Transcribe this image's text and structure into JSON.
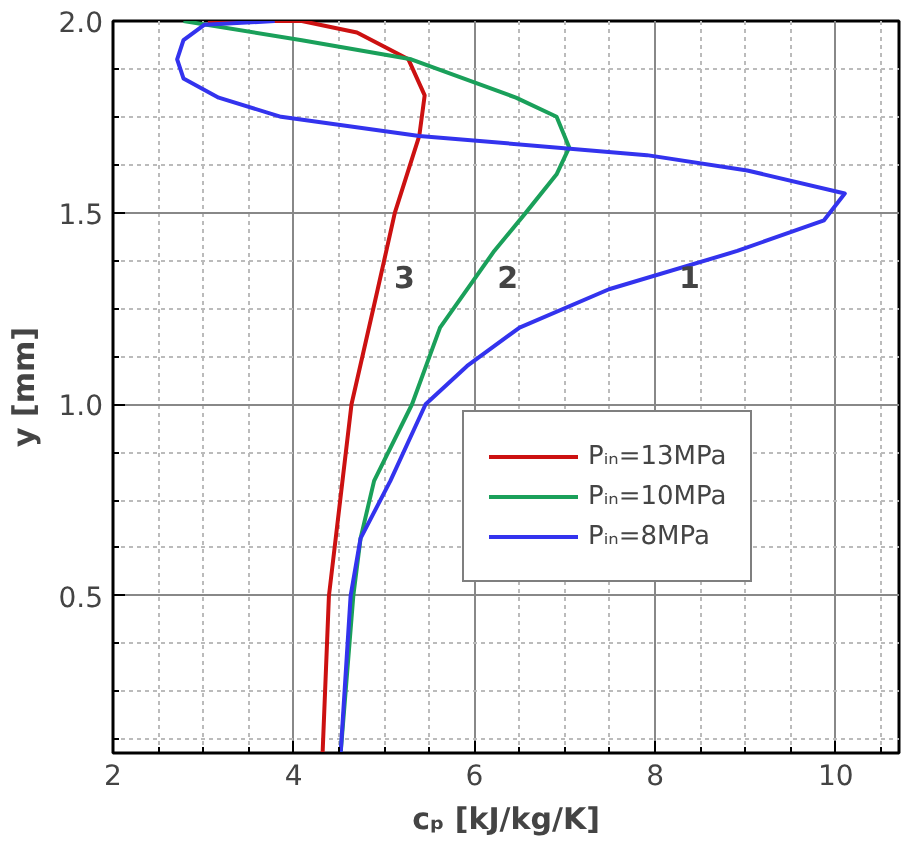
{
  "chart_data": {
    "type": "line",
    "xlabel": "cₚ [kJ/kg/K]",
    "ylabel": "y [mm]",
    "xlim": [
      2,
      10.7
    ],
    "ylim": [
      0.09,
      2.0
    ],
    "xticks": [
      2,
      4,
      6,
      8,
      10
    ],
    "yticks": [
      {
        "value": 0.5,
        "label": "0.5"
      },
      {
        "value": 1.0,
        "label": "1.0"
      },
      {
        "value": 1.5,
        "label": "1.5"
      },
      {
        "value": 2.0,
        "label": "2.0"
      }
    ],
    "grid": true,
    "legend": "right",
    "line_style": "solid",
    "marker": "none",
    "series": [
      {
        "name": "Pᵢₙ=13MPa",
        "color": "#cc1111",
        "x": [
          4.32,
          4.39,
          4.64,
          4.93,
          5.12,
          5.39,
          5.45,
          5.27,
          4.7,
          4.09,
          3.05
        ],
        "values": [
          0.09,
          0.5,
          1.0,
          1.3,
          1.5,
          1.7,
          1.806,
          1.9,
          1.97,
          2.0,
          2.0
        ]
      },
      {
        "name": "Pᵢₙ=10MPa",
        "color": "#1aa05a",
        "x": [
          4.52,
          4.66,
          4.74,
          4.89,
          5.31,
          5.62,
          6.22,
          6.57,
          6.91,
          7.05,
          6.91,
          6.46,
          5.3,
          4.09,
          2.78
        ],
        "values": [
          0.09,
          0.5,
          0.65,
          0.8,
          1.0,
          1.2,
          1.4,
          1.5,
          1.6,
          1.67,
          1.75,
          1.8,
          1.9,
          1.95,
          2.0
        ]
      },
      {
        "name": "Pᵢₙ=8MPa",
        "color": "#3333ee",
        "x": [
          4.52,
          4.63,
          4.74,
          5.07,
          5.46,
          5.92,
          6.5,
          7.49,
          8.91,
          9.87,
          10.1,
          9.02,
          7.91,
          5.39,
          3.86,
          3.17,
          2.78,
          2.71,
          2.78,
          3.01,
          3.79
        ],
        "values": [
          0.09,
          0.5,
          0.65,
          0.8,
          1.0,
          1.1,
          1.2,
          1.3,
          1.4,
          1.48,
          1.55,
          1.61,
          1.65,
          1.7,
          1.75,
          1.8,
          1.85,
          1.9,
          1.95,
          1.99,
          2.0
        ]
      }
    ],
    "annotations": [
      "3",
      "2",
      "1"
    ]
  }
}
